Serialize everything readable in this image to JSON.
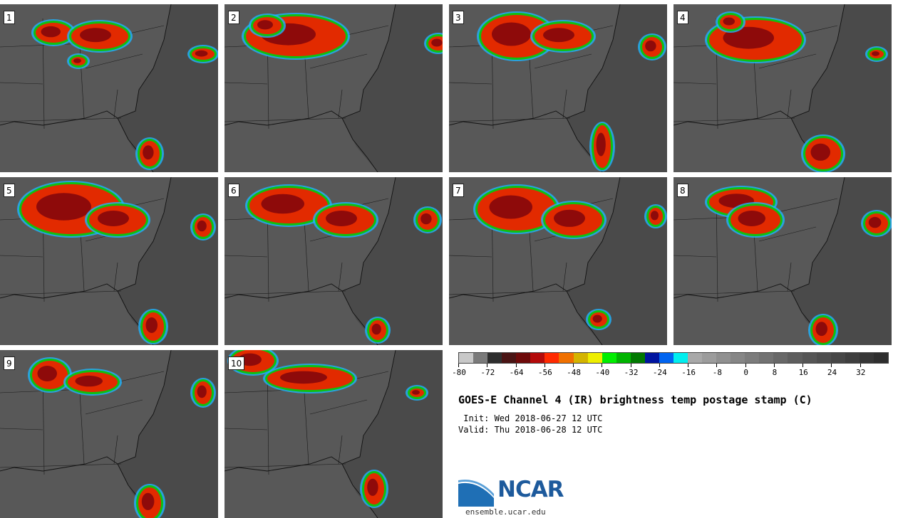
{
  "title": "GOES-E Channel 4 (IR) brightness temp postage stamp (C)",
  "init_line": " Init: Wed 2018-06-27 12 UTC",
  "valid_line": "Valid: Thu 2018-06-28 12 UTC",
  "panels": [
    {
      "label": "1"
    },
    {
      "label": "2"
    },
    {
      "label": "3"
    },
    {
      "label": "4"
    },
    {
      "label": "5"
    },
    {
      "label": "6"
    },
    {
      "label": "7"
    },
    {
      "label": "8"
    },
    {
      "label": "9"
    },
    {
      "label": "10"
    }
  ],
  "colorbar": {
    "min": -80,
    "max": 40,
    "step": 4,
    "tick_labels": [
      "-80",
      "-72",
      "-64",
      "-56",
      "-48",
      "-40",
      "-32",
      "-24",
      "-16",
      "-8",
      "0",
      "8",
      "16",
      "24",
      "32"
    ],
    "colors": [
      "#c8c8c8",
      "#7a7a7a",
      "#2e2e2e",
      "#4a1414",
      "#6e0a0a",
      "#b40a0a",
      "#ff2a00",
      "#f07000",
      "#d4b400",
      "#eeee00",
      "#00ee00",
      "#00b400",
      "#007800",
      "#0014a0",
      "#0064f0",
      "#00eeee",
      "#a8a8a8",
      "#9c9c9c",
      "#909090",
      "#868686",
      "#7c7c7c",
      "#727272",
      "#686868",
      "#5e5e5e",
      "#565656",
      "#4e4e4e",
      "#464646",
      "#3e3e3e",
      "#363636",
      "#2e2e2e"
    ]
  },
  "logo": {
    "wordmark": "NCAR",
    "url": "ensemble.ucar.edu"
  }
}
